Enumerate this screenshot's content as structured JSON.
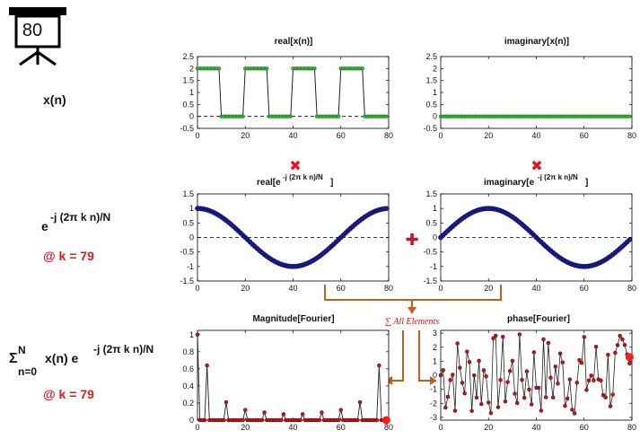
{
  "badge": {
    "number": "80"
  },
  "labels": {
    "xn": "x(n)",
    "exp_base": "e",
    "exp_sup": "-j (2π k n)/N",
    "k_label_1": "@ k = 79",
    "sum_sigma": "Σ",
    "sum_top": "N",
    "sum_bottom": "n=0",
    "sum_body": "x(n) e",
    "sum_sup": "-j (2π k n)/N",
    "k_label_2": "@ k = 79",
    "sum_all": "∑ All Elements"
  },
  "operators": {
    "multiply": "✖",
    "plus": "✚"
  },
  "colors": {
    "green": "#2eb82e",
    "navy": "#1a1a8c",
    "darkred": "#b0121e",
    "red": "#e8141e",
    "orange": "#c0601a"
  },
  "panels": {
    "p1": {
      "title": "real[x(n)]",
      "yticks": [
        "2.5",
        "2",
        "1.5",
        "1",
        "0.5",
        "0",
        "-0.5"
      ],
      "xticks": [
        "0",
        "20",
        "40",
        "60",
        "80"
      ]
    },
    "p2": {
      "title": "imaginary[x(n)]",
      "yticks": [
        "2.5",
        "2",
        "1.5",
        "1",
        "0.5",
        "0",
        "-0.5"
      ],
      "xticks": [
        "0",
        "20",
        "40",
        "60",
        "80"
      ]
    },
    "p3": {
      "title_main": "real[e",
      "title_sup": "-j (2π k n)/N",
      "title_end": "]",
      "yticks": [
        "1.5",
        "1",
        "0.5",
        "0",
        "-0.5",
        "-1",
        "-1.5"
      ],
      "xticks": [
        "0",
        "20",
        "40",
        "60",
        "80"
      ]
    },
    "p4": {
      "title_main": "imaginary[e",
      "title_sup": "-j (2π k n)/N",
      "title_end": "]",
      "yticks": [
        "1.5",
        "1",
        "0.5",
        "0",
        "-0.5",
        "-1",
        "-1.5"
      ],
      "xticks": [
        "0",
        "20",
        "40",
        "60",
        "80"
      ]
    },
    "p5": {
      "title": "Magnitude[Fourier]",
      "yticks": [
        "1",
        "0.8",
        "0.6",
        "0.4",
        "0.2",
        "0"
      ],
      "xticks": [
        "0",
        "20",
        "40",
        "60",
        "80"
      ]
    },
    "p6": {
      "title": "phase[Fourier]",
      "yticks": [
        "3",
        "2",
        "1",
        "0",
        "-1",
        "-2",
        "-3"
      ],
      "xticks": [
        "0",
        "20",
        "40",
        "60",
        "80"
      ]
    }
  },
  "chart_data": [
    {
      "type": "scatter",
      "title": "real[x(n)]",
      "x": [
        0,
        80
      ],
      "series": [
        {
          "values": "square wave: 2 for n mod 20 < 10, else 0; n = 0..79"
        }
      ],
      "ylim": [
        -0.5,
        2.5
      ],
      "xlim": [
        0,
        80
      ]
    },
    {
      "type": "scatter",
      "title": "imaginary[x(n)]",
      "series": [
        {
          "values": "0 for all n"
        }
      ],
      "ylim": [
        -0.5,
        2.5
      ],
      "xlim": [
        0,
        80
      ]
    },
    {
      "type": "scatter",
      "title": "real[e^-j(2πkn)/N]",
      "series": [
        {
          "values": "cos(2π·79·n/80)"
        }
      ],
      "ylim": [
        -1.5,
        1.5
      ],
      "xlim": [
        0,
        80
      ]
    },
    {
      "type": "scatter",
      "title": "imaginary[e^-j(2πkn)/N]",
      "series": [
        {
          "values": "-sin(2π·79·n/80)"
        }
      ],
      "ylim": [
        -1.5,
        1.5
      ],
      "xlim": [
        0,
        80
      ]
    },
    {
      "type": "line",
      "title": "Magnitude[Fourier]",
      "x_peaks": [
        0,
        4,
        12,
        20,
        28,
        36,
        44,
        52,
        60,
        68,
        76,
        79
      ],
      "values_peaks": [
        1.0,
        0.64,
        0.21,
        0.12,
        0.09,
        0.07,
        0.07,
        0.09,
        0.12,
        0.21,
        0.64,
        0.0
      ],
      "ylim": [
        0,
        1.05
      ],
      "xlim": [
        0,
        80
      ]
    },
    {
      "type": "line",
      "title": "phase[Fourier]",
      "ylim": [
        -3.2,
        3.2
      ],
      "xlim": [
        0,
        80
      ],
      "highlight": {
        "x": 79,
        "y": 1.3
      }
    }
  ]
}
